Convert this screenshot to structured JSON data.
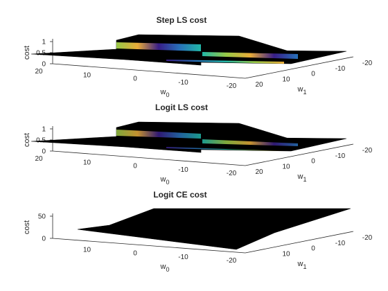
{
  "chart_data": [
    {
      "type": "surface",
      "title": "Step LS cost",
      "xlabel": "w",
      "xlabel_sub": "0",
      "ylabel": "w",
      "ylabel_sub": "1",
      "zlabel": "cost",
      "xlim": [
        -20,
        20
      ],
      "ylim": [
        -20,
        20
      ],
      "zlim": [
        0,
        1
      ],
      "xticks": [
        "20",
        "10",
        "0",
        "-10",
        "-20"
      ],
      "yticks": [
        "20",
        "10",
        "0",
        "-10",
        "-20"
      ],
      "zticks": [
        "0",
        "0.5",
        "1"
      ],
      "surface": {
        "low_plateau": 0.5,
        "high_plateau": 1.0,
        "transition": "step",
        "edge_colormap": [
          "#3b1f8f",
          "#2a78c4",
          "#23c1b0",
          "#9fd34b",
          "#f5b53c"
        ]
      }
    },
    {
      "type": "surface",
      "title": "Logit LS cost",
      "xlabel": "w",
      "xlabel_sub": "0",
      "ylabel": "w",
      "ylabel_sub": "1",
      "zlabel": "cost",
      "xlim": [
        -20,
        20
      ],
      "ylim": [
        -20,
        20
      ],
      "zlim": [
        0,
        1
      ],
      "xticks": [
        "20",
        "10",
        "0",
        "-10",
        "-20"
      ],
      "yticks": [
        "20",
        "10",
        "0",
        "-10",
        "-20"
      ],
      "zticks": [
        "0",
        "0.5",
        "1"
      ],
      "surface": {
        "low_plateau": 0.5,
        "high_plateau": 1.0,
        "transition": "smooth",
        "edge_colormap": [
          "#3b1f8f",
          "#2a78c4",
          "#23c1b0",
          "#9fd34b",
          "#f5b53c"
        ]
      }
    },
    {
      "type": "surface",
      "title": "Logit CE cost",
      "xlabel": "w",
      "xlabel_sub": "0",
      "ylabel": "w",
      "ylabel_sub": "1",
      "zlabel": "cost",
      "xlim": [
        -20,
        20
      ],
      "ylim": [
        -20,
        20
      ],
      "zlim": [
        0,
        50
      ],
      "xticks": [
        "10",
        "0",
        "-10",
        "-20"
      ],
      "yticks": [
        "10",
        "0",
        "-10",
        "-20"
      ],
      "zticks": [
        "0",
        "50"
      ],
      "surface": {
        "low_plateau": 0,
        "high_plateau": 50,
        "transition": "linear",
        "edge_colormap": []
      }
    }
  ]
}
